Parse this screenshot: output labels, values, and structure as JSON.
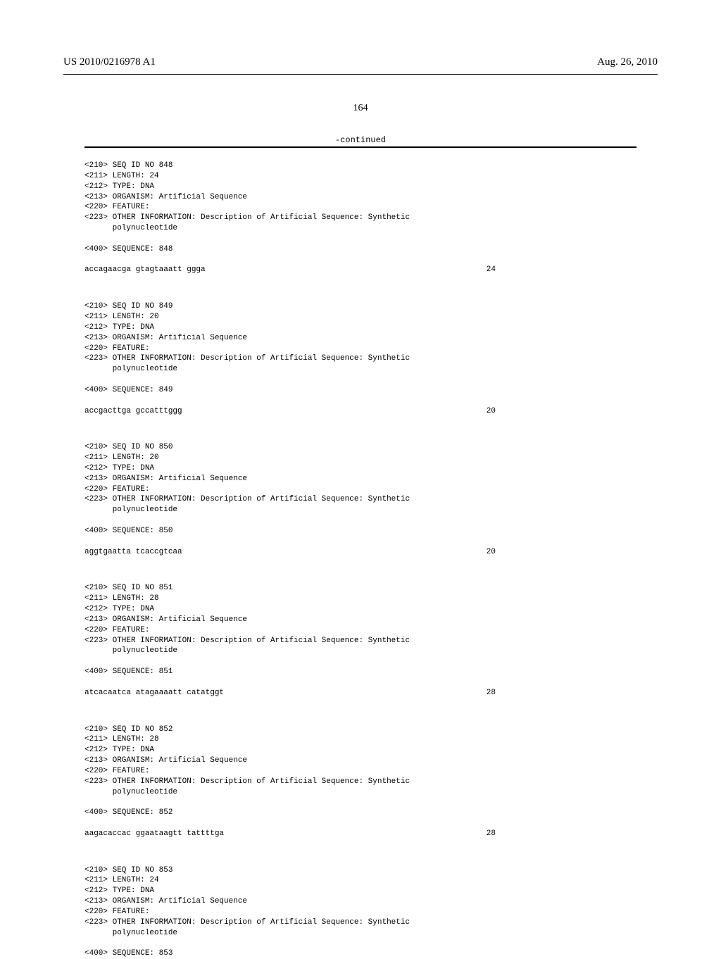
{
  "header": {
    "left": "US 2010/0216978 A1",
    "right": "Aug. 26, 2010"
  },
  "page_number": "164",
  "continued_label": "-continued",
  "labels": {
    "seq_id": "<210> SEQ ID NO ",
    "length": "<211> LENGTH: ",
    "type": "<212> TYPE: ",
    "organism": "<213> ORGANISM: ",
    "feature": "<220> FEATURE:",
    "other_info": "<223> OTHER INFORMATION: ",
    "other_info_text": "Description of Artificial Sequence: Synthetic",
    "other_info_cont": "      polynucleotide",
    "sequence": "<400> SEQUENCE: "
  },
  "entries": [
    {
      "id": "848",
      "length": "24",
      "type": "DNA",
      "organism": "Artificial Sequence",
      "seq": "accagaacga gtagtaaatt ggga",
      "seq_len": "24"
    },
    {
      "id": "849",
      "length": "20",
      "type": "DNA",
      "organism": "Artificial Sequence",
      "seq": "accgacttga gccatttggg",
      "seq_len": "20"
    },
    {
      "id": "850",
      "length": "20",
      "type": "DNA",
      "organism": "Artificial Sequence",
      "seq": "aggtgaatta tcaccgtcaa",
      "seq_len": "20"
    },
    {
      "id": "851",
      "length": "28",
      "type": "DNA",
      "organism": "Artificial Sequence",
      "seq": "atcacaatca atagaaaatt catatggt",
      "seq_len": "28"
    },
    {
      "id": "852",
      "length": "28",
      "type": "DNA",
      "organism": "Artificial Sequence",
      "seq": "aagacaccac ggaataagtt tattttga",
      "seq_len": "28"
    },
    {
      "id": "853",
      "length": "24",
      "type": "DNA",
      "organism": "Artificial Sequence",
      "seq": "",
      "seq_len": ""
    }
  ]
}
